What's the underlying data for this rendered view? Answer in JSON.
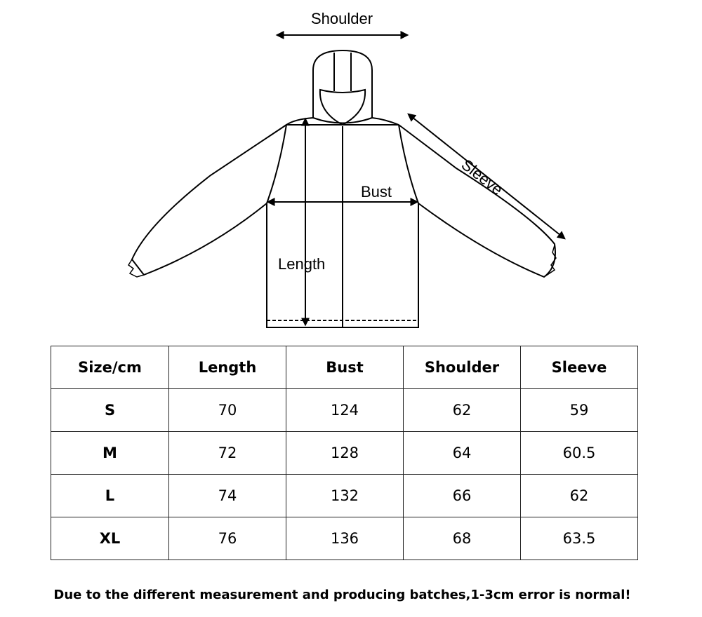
{
  "diagram": {
    "labels": {
      "shoulder": "Shoulder",
      "sleeve": "Sleeve",
      "bust": "Bust",
      "length": "Length"
    }
  },
  "table": {
    "headers": [
      "Size/cm",
      "Length",
      "Bust",
      "Shoulder",
      "Sleeve"
    ],
    "rows": [
      [
        "S",
        "70",
        "124",
        "62",
        "59"
      ],
      [
        "M",
        "72",
        "128",
        "64",
        "60.5"
      ],
      [
        "L",
        "74",
        "132",
        "66",
        "62"
      ],
      [
        "XL",
        "76",
        "136",
        "68",
        "63.5"
      ]
    ]
  },
  "note": "Due to the different measurement and producing batches,1-3cm error is normal!"
}
